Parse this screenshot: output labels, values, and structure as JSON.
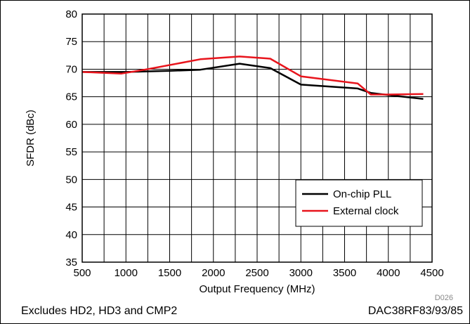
{
  "chart_data": {
    "type": "line",
    "title": "",
    "xlabel": "Output Frequency (MHz)",
    "ylabel": "SFDR (dBc)",
    "xlim": [
      500,
      4500
    ],
    "ylim": [
      35,
      80
    ],
    "xticks": [
      500,
      1000,
      1500,
      2000,
      2500,
      3000,
      3500,
      4000,
      4500
    ],
    "yticks": [
      35,
      40,
      45,
      50,
      55,
      60,
      65,
      70,
      75,
      80
    ],
    "x_minor_step": 250,
    "grid": true,
    "legend_position": "bottom-right",
    "figure_id": "D026",
    "series": [
      {
        "name": "On-chip PLL",
        "color": "#000000",
        "points": [
          [
            500,
            69.5
          ],
          [
            1000,
            69.5
          ],
          [
            1500,
            69.7
          ],
          [
            1850,
            69.9
          ],
          [
            2300,
            71.0
          ],
          [
            2650,
            70.2
          ],
          [
            3000,
            67.2
          ],
          [
            3650,
            66.5
          ],
          [
            3800,
            65.7
          ],
          [
            4000,
            65.3
          ],
          [
            4400,
            64.6
          ]
        ]
      },
      {
        "name": "External clock",
        "color": "#e8141c",
        "points": [
          [
            500,
            69.5
          ],
          [
            950,
            69.2
          ],
          [
            1250,
            70.0
          ],
          [
            1850,
            71.8
          ],
          [
            2300,
            72.3
          ],
          [
            2650,
            71.9
          ],
          [
            3000,
            68.7
          ],
          [
            3650,
            67.4
          ],
          [
            3800,
            65.4
          ],
          [
            4000,
            65.4
          ],
          [
            4400,
            65.5
          ]
        ]
      }
    ]
  },
  "footer": {
    "left": "Excludes HD2, HD3 and CMP2",
    "right": "DAC38RF83/93/85"
  }
}
